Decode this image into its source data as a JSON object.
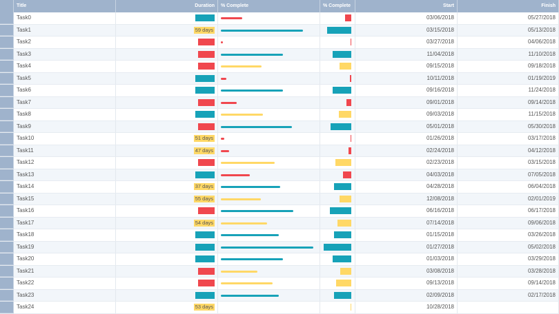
{
  "headers": {
    "title": "Title",
    "duration": "Duration",
    "complete1": "% Complete",
    "complete2": "% Complete",
    "start": "Start",
    "finish": "Finish"
  },
  "colors": {
    "teal": "#17a2b8",
    "yellow": "#ffd866",
    "red": "#f0474e"
  },
  "rows": [
    {
      "title": "Task0",
      "duration": "",
      "dcolor": "teal",
      "pct": 20,
      "pcolor": "red",
      "start": "03/06/2018",
      "finish": "05/27/2018"
    },
    {
      "title": "Task1",
      "duration": "59 days",
      "dcolor": "yellow",
      "pct": 76,
      "pcolor": "teal",
      "start": "03/15/2018",
      "finish": "05/13/2018"
    },
    {
      "title": "Task2",
      "duration": "",
      "dcolor": "red",
      "pct": 2,
      "pcolor": "red",
      "start": "03/27/2018",
      "finish": "04/06/2018"
    },
    {
      "title": "Task3",
      "duration": "",
      "dcolor": "red",
      "pct": 58,
      "pcolor": "teal",
      "start": "11/04/2018",
      "finish": "11/10/2018"
    },
    {
      "title": "Task4",
      "duration": "",
      "dcolor": "red",
      "pct": 38,
      "pcolor": "yellow",
      "start": "09/15/2018",
      "finish": "09/18/2018"
    },
    {
      "title": "Task5",
      "duration": "",
      "dcolor": "teal",
      "pct": 5,
      "pcolor": "red",
      "start": "10/11/2018",
      "finish": "01/19/2019"
    },
    {
      "title": "Task6",
      "duration": "",
      "dcolor": "teal",
      "pct": 58,
      "pcolor": "teal",
      "start": "09/16/2018",
      "finish": "11/24/2018"
    },
    {
      "title": "Task7",
      "duration": "",
      "dcolor": "red",
      "pct": 15,
      "pcolor": "red",
      "start": "09/01/2018",
      "finish": "09/14/2018"
    },
    {
      "title": "Task8",
      "duration": "",
      "dcolor": "teal",
      "pct": 39,
      "pcolor": "yellow",
      "start": "09/03/2018",
      "finish": "11/15/2018"
    },
    {
      "title": "Task9",
      "duration": "",
      "dcolor": "red",
      "pct": 66,
      "pcolor": "teal",
      "start": "05/01/2018",
      "finish": "05/30/2018"
    },
    {
      "title": "Task10",
      "duration": "51 days",
      "dcolor": "yellow",
      "pct": 3,
      "pcolor": "red",
      "start": "01/26/2018",
      "finish": "03/17/2018"
    },
    {
      "title": "Task11",
      "duration": "47 days",
      "dcolor": "yellow",
      "pct": 8,
      "pcolor": "red",
      "start": "02/24/2018",
      "finish": "04/12/2018"
    },
    {
      "title": "Task12",
      "duration": "",
      "dcolor": "red",
      "pct": 50,
      "pcolor": "yellow",
      "start": "02/23/2018",
      "finish": "03/15/2018"
    },
    {
      "title": "Task13",
      "duration": "",
      "dcolor": "teal",
      "pct": 27,
      "pcolor": "red",
      "start": "04/03/2018",
      "finish": "07/05/2018"
    },
    {
      "title": "Task14",
      "duration": "37 days",
      "dcolor": "yellow",
      "pct": 55,
      "pcolor": "teal",
      "start": "04/28/2018",
      "finish": "06/04/2018"
    },
    {
      "title": "Task15",
      "duration": "55 days",
      "dcolor": "yellow",
      "pct": 37,
      "pcolor": "yellow",
      "start": "12/08/2018",
      "finish": "02/01/2019"
    },
    {
      "title": "Task16",
      "duration": "",
      "dcolor": "red",
      "pct": 67,
      "pcolor": "teal",
      "start": "06/16/2018",
      "finish": "06/17/2018"
    },
    {
      "title": "Task17",
      "duration": "54 days",
      "dcolor": "yellow",
      "pct": 43,
      "pcolor": "yellow",
      "start": "07/14/2018",
      "finish": "09/06/2018"
    },
    {
      "title": "Task18",
      "duration": "",
      "dcolor": "teal",
      "pct": 54,
      "pcolor": "teal",
      "start": "01/15/2018",
      "finish": "03/26/2018"
    },
    {
      "title": "Task19",
      "duration": "",
      "dcolor": "teal",
      "pct": 86,
      "pcolor": "teal",
      "start": "01/27/2018",
      "finish": "05/02/2018"
    },
    {
      "title": "Task20",
      "duration": "",
      "dcolor": "teal",
      "pct": 58,
      "pcolor": "teal",
      "start": "01/03/2018",
      "finish": "03/29/2018"
    },
    {
      "title": "Task21",
      "duration": "",
      "dcolor": "red",
      "pct": 34,
      "pcolor": "yellow",
      "start": "03/08/2018",
      "finish": "03/28/2018"
    },
    {
      "title": "Task22",
      "duration": "",
      "dcolor": "red",
      "pct": 48,
      "pcolor": "yellow",
      "start": "09/13/2018",
      "finish": "09/14/2018"
    },
    {
      "title": "Task23",
      "duration": "",
      "dcolor": "teal",
      "pct": 54,
      "pcolor": "teal",
      "start": "02/09/2018",
      "finish": "02/17/2018"
    },
    {
      "title": "Task24",
      "duration": "53 days",
      "dcolor": "yellow",
      "pct": 0,
      "pcolor": "yellow",
      "start": "10/28/2018",
      "finish": ""
    }
  ]
}
